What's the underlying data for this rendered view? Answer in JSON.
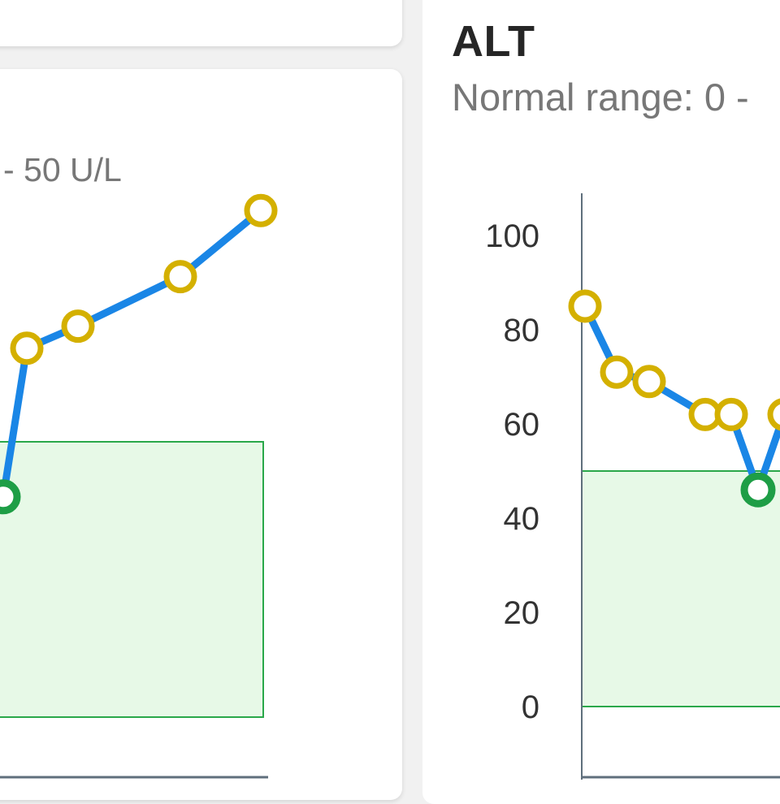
{
  "left_panel": {
    "subtitle": "- 50 U/L"
  },
  "right_panel": {
    "title": "ALT",
    "subtitle": "Normal range: 0 -"
  },
  "colors": {
    "line": "#1a86e6",
    "abnormal_fill": "#ffffff",
    "abnormal_stroke": "#d4b000",
    "normal_stroke": "#1e9e46",
    "normal_band_fill": "#e7f9e7",
    "normal_band_stroke": "#2aa84a",
    "axis": "#5f6f7c"
  },
  "chart_data": [
    {
      "type": "line",
      "panel": "left",
      "ylim": [
        0,
        100
      ],
      "normal_range": [
        0,
        50
      ],
      "x": [
        0,
        1,
        2,
        3,
        4
      ],
      "series": [
        {
          "values": [
            40,
            67,
            71,
            80,
            92
          ],
          "status": [
            "normal",
            "high",
            "high",
            "high",
            "high"
          ]
        }
      ]
    },
    {
      "type": "line",
      "panel": "right",
      "title": "ALT",
      "ylim": [
        0,
        100
      ],
      "yticks": [
        0,
        20,
        40,
        60,
        80,
        100
      ],
      "normal_range": [
        0,
        50
      ],
      "x": [
        0,
        1,
        2,
        3,
        4,
        5,
        6
      ],
      "series": [
        {
          "values": [
            85,
            71,
            69,
            62,
            62,
            46,
            62
          ],
          "status": [
            "high",
            "high",
            "high",
            "high",
            "high",
            "normal",
            "high"
          ]
        }
      ]
    }
  ]
}
